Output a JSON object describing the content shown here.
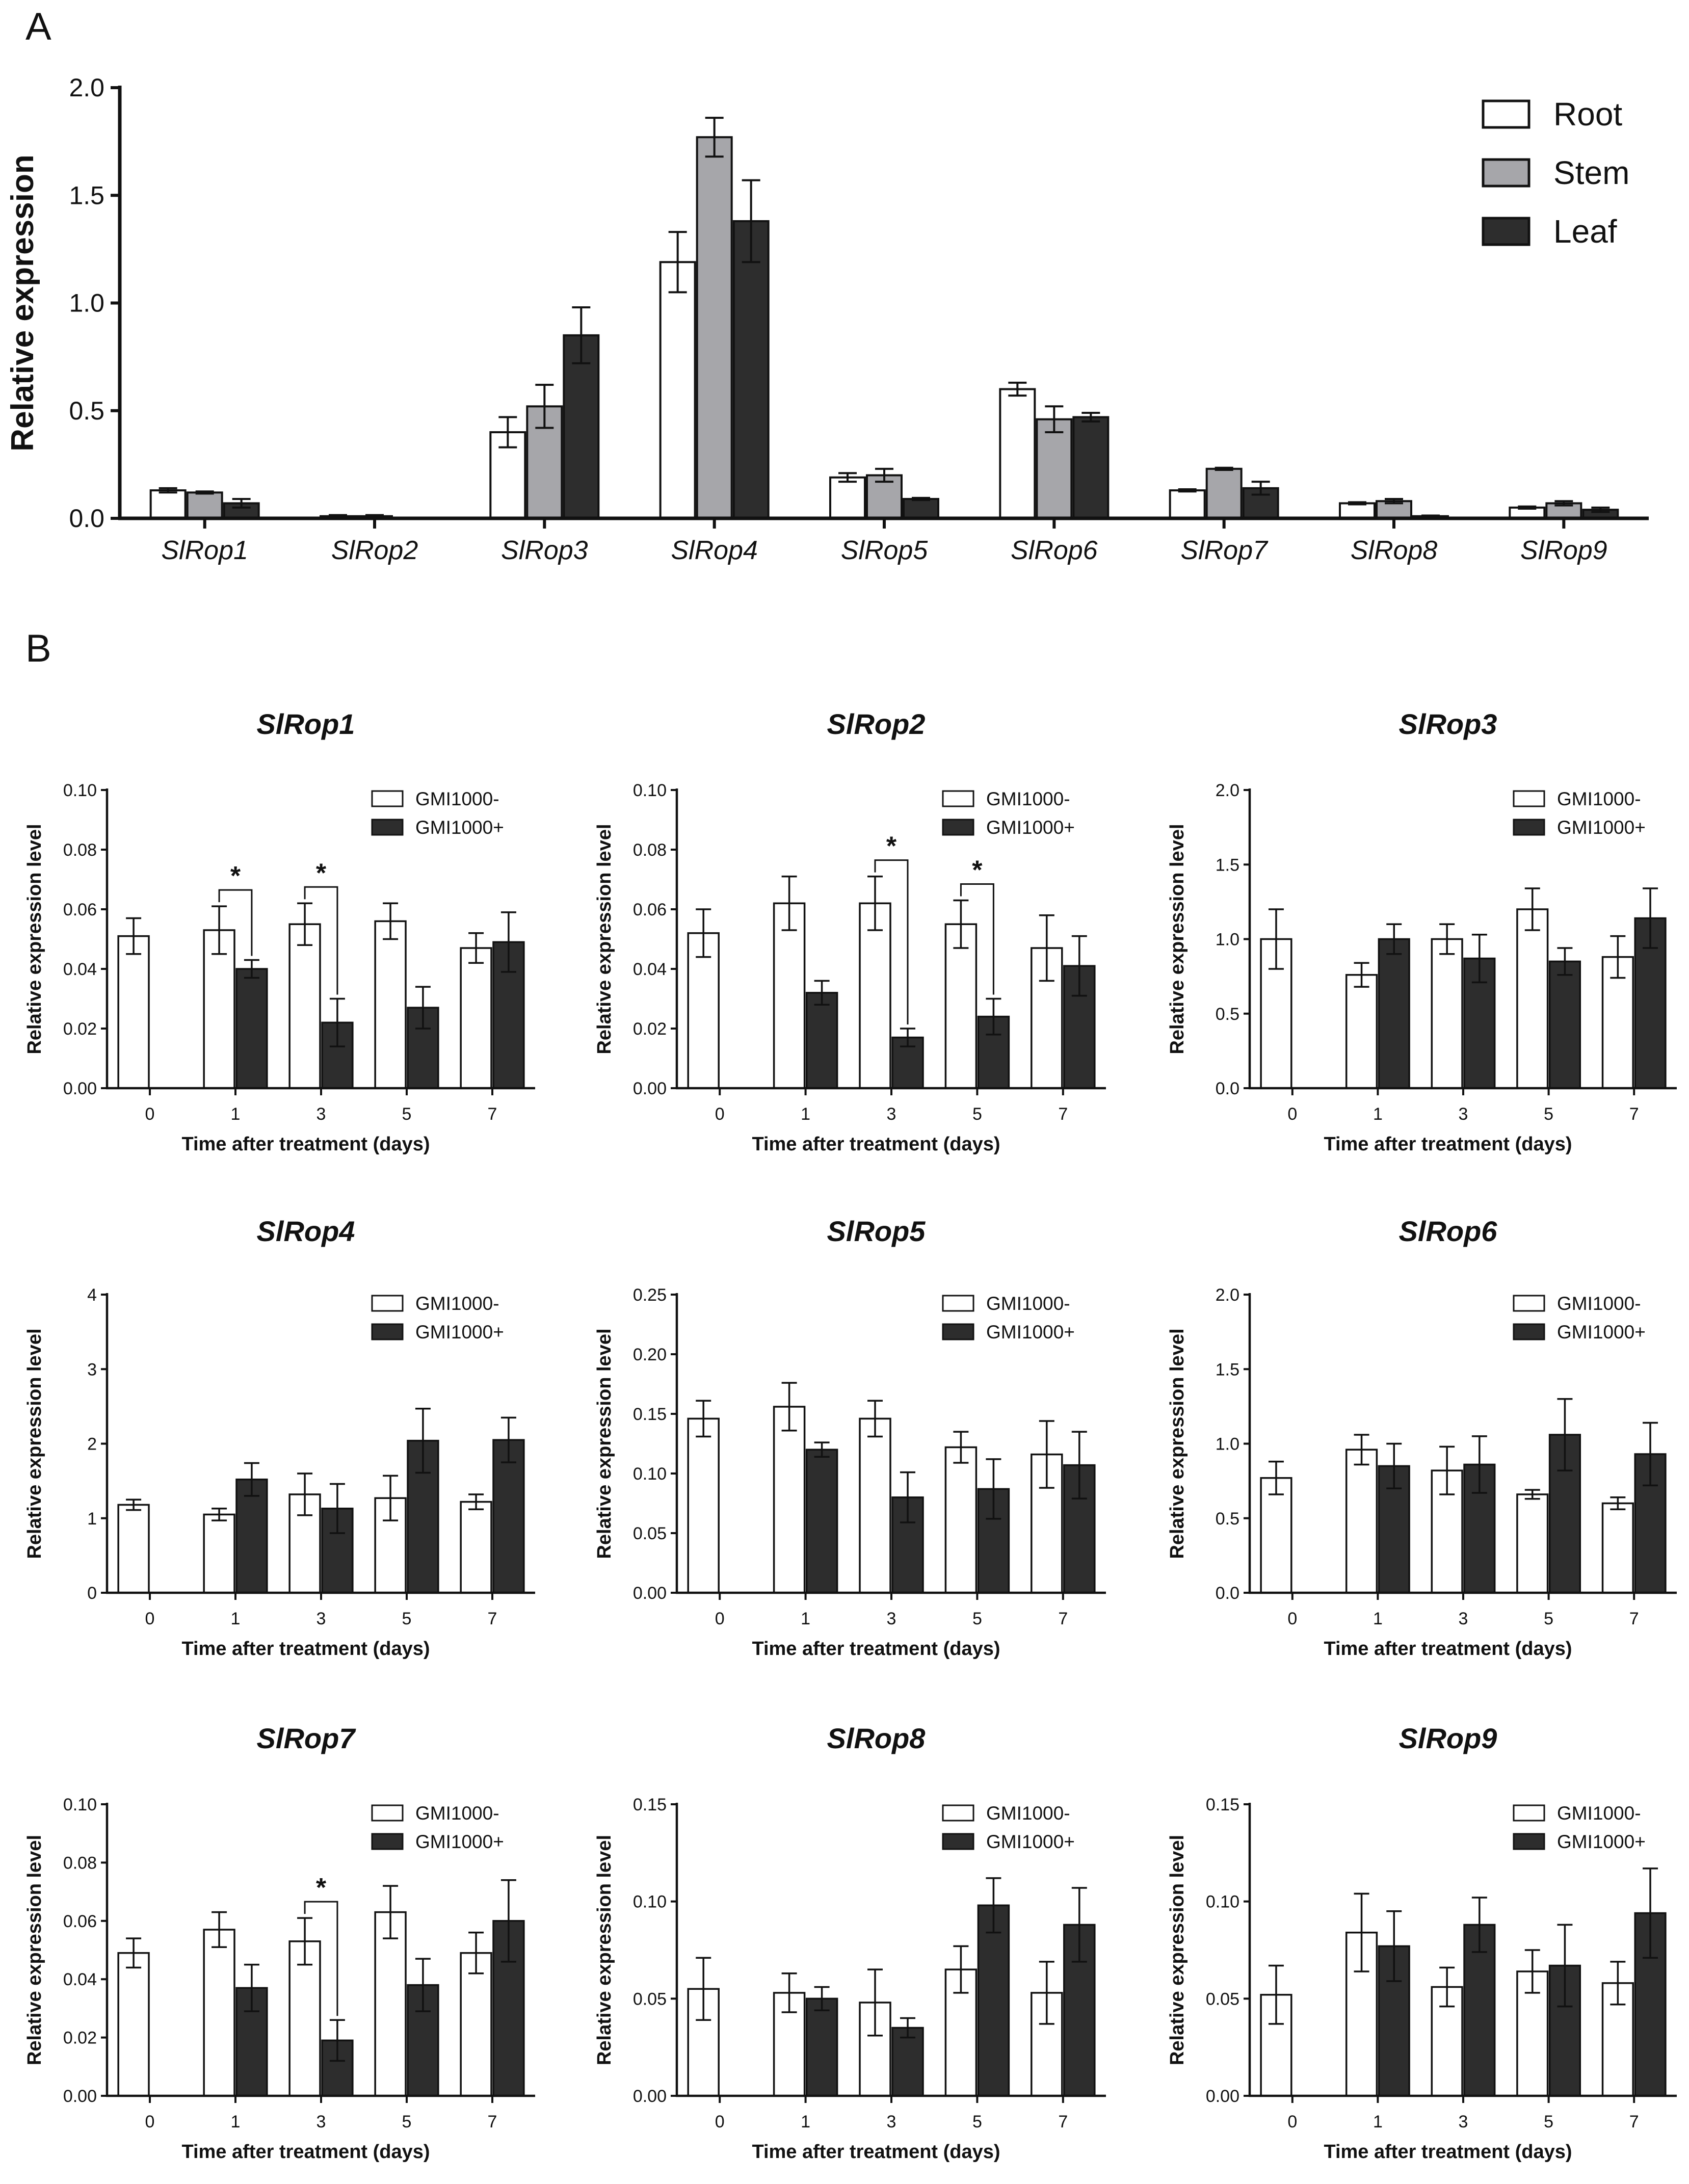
{
  "figure": {
    "panel_a_label": "A",
    "panel_b_label": "B"
  },
  "colors": {
    "root": "#ffffff",
    "stem": "#a6a6aa",
    "leaf": "#2d2d2d",
    "neg": "#ffffff",
    "pos": "#2d2d2d",
    "stroke": "#111111"
  },
  "chart_data": [
    {
      "id": "A",
      "type": "bar",
      "ylabel": "Relative expression",
      "xlabel": "",
      "ylim": [
        0,
        2.0
      ],
      "yticks": [
        "0.0",
        "0.5",
        "1.0",
        "1.5",
        "2.0"
      ],
      "categories": [
        "SlRop1",
        "SlRop2",
        "SlRop3",
        "SlRop4",
        "SlRop5",
        "SlRop6",
        "SlRop7",
        "SlRop8",
        "SlRop9"
      ],
      "legend": [
        "Root",
        "Stem",
        "Leaf"
      ],
      "series": [
        {
          "name": "Root",
          "values": [
            0.13,
            0.01,
            0.4,
            1.19,
            0.19,
            0.6,
            0.13,
            0.07,
            0.05
          ],
          "errors": [
            0.01,
            0.005,
            0.07,
            0.14,
            0.02,
            0.03,
            0.005,
            0.005,
            0.005
          ]
        },
        {
          "name": "Stem",
          "values": [
            0.12,
            0.01,
            0.52,
            1.77,
            0.2,
            0.46,
            0.23,
            0.08,
            0.07
          ],
          "errors": [
            0.005,
            0.005,
            0.1,
            0.09,
            0.03,
            0.06,
            0.005,
            0.01,
            0.01
          ]
        },
        {
          "name": "Leaf",
          "values": [
            0.07,
            0.0,
            0.85,
            1.38,
            0.09,
            0.47,
            0.14,
            0.01,
            0.04
          ],
          "errors": [
            0.02,
            0.0,
            0.13,
            0.19,
            0.005,
            0.02,
            0.03,
            0.003,
            0.01
          ]
        }
      ]
    },
    {
      "id": "B1",
      "type": "bar",
      "title": "SlRop1",
      "ylabel": "Relative expression level",
      "xlabel": "Time after treatment (days)",
      "categories": [
        "0",
        "1",
        "3",
        "5",
        "7"
      ],
      "ylim": [
        0,
        0.1
      ],
      "yticks": [
        "0.00",
        "0.02",
        "0.04",
        "0.06",
        "0.08",
        "0.10"
      ],
      "legend": [
        "GMI1000-",
        "GMI1000+"
      ],
      "series": [
        {
          "name": "GMI1000-",
          "values": [
            0.051,
            0.053,
            0.055,
            0.056,
            0.047
          ],
          "errors": [
            0.006,
            0.008,
            0.007,
            0.006,
            0.005
          ]
        },
        {
          "name": "GMI1000+",
          "values": [
            null,
            0.04,
            0.022,
            0.027,
            0.049
          ],
          "errors": [
            null,
            0.003,
            0.008,
            0.007,
            0.01
          ]
        }
      ],
      "significance": [
        {
          "category": "1",
          "label": "*"
        },
        {
          "category": "3",
          "label": "*"
        }
      ]
    },
    {
      "id": "B2",
      "type": "bar",
      "title": "SlRop2",
      "ylabel": "Relative expression level",
      "xlabel": "Time after treatment (days)",
      "categories": [
        "0",
        "1",
        "3",
        "5",
        "7"
      ],
      "ylim": [
        0,
        0.1
      ],
      "yticks": [
        "0.00",
        "0.02",
        "0.04",
        "0.06",
        "0.08",
        "0.10"
      ],
      "legend": [
        "GMI1000-",
        "GMI1000+"
      ],
      "series": [
        {
          "name": "GMI1000-",
          "values": [
            0.052,
            0.062,
            0.062,
            0.055,
            0.047
          ],
          "errors": [
            0.008,
            0.009,
            0.009,
            0.008,
            0.011
          ]
        },
        {
          "name": "GMI1000+",
          "values": [
            null,
            0.032,
            0.017,
            0.024,
            0.041
          ],
          "errors": [
            null,
            0.004,
            0.003,
            0.006,
            0.01
          ]
        }
      ],
      "significance": [
        {
          "category": "3",
          "label": "*"
        },
        {
          "category": "5",
          "label": "*"
        }
      ]
    },
    {
      "id": "B3",
      "type": "bar",
      "title": "SlRop3",
      "ylabel": "Relative expression level",
      "xlabel": "Time after treatment (days)",
      "categories": [
        "0",
        "1",
        "3",
        "5",
        "7"
      ],
      "ylim": [
        0,
        2.0
      ],
      "yticks": [
        "0.0",
        "0.5",
        "1.0",
        "1.5",
        "2.0"
      ],
      "legend": [
        "GMI1000-",
        "GMI1000+"
      ],
      "series": [
        {
          "name": "GMI1000-",
          "values": [
            1.0,
            0.76,
            1.0,
            1.2,
            0.88
          ],
          "errors": [
            0.2,
            0.08,
            0.1,
            0.14,
            0.14
          ]
        },
        {
          "name": "GMI1000+",
          "values": [
            null,
            1.0,
            0.87,
            0.85,
            1.14
          ],
          "errors": [
            null,
            0.1,
            0.16,
            0.09,
            0.2
          ]
        }
      ],
      "significance": []
    },
    {
      "id": "B4",
      "type": "bar",
      "title": "SlRop4",
      "ylabel": "Relative expression level",
      "xlabel": "Time after treatment (days)",
      "categories": [
        "0",
        "1",
        "3",
        "5",
        "7"
      ],
      "ylim": [
        0,
        4
      ],
      "yticks": [
        "0",
        "1",
        "2",
        "3",
        "4"
      ],
      "legend": [
        "GMI1000-",
        "GMI1000+"
      ],
      "series": [
        {
          "name": "GMI1000-",
          "values": [
            1.18,
            1.05,
            1.32,
            1.27,
            1.22
          ],
          "errors": [
            0.07,
            0.08,
            0.28,
            0.3,
            0.1
          ]
        },
        {
          "name": "GMI1000+",
          "values": [
            null,
            1.52,
            1.13,
            2.04,
            2.05
          ],
          "errors": [
            null,
            0.22,
            0.33,
            0.43,
            0.3
          ]
        }
      ],
      "significance": []
    },
    {
      "id": "B5",
      "type": "bar",
      "title": "SlRop5",
      "ylabel": "Relative expression level",
      "xlabel": "Time after treatment (days)",
      "categories": [
        "0",
        "1",
        "3",
        "5",
        "7"
      ],
      "ylim": [
        0,
        0.25
      ],
      "yticks": [
        "0.00",
        "0.05",
        "0.10",
        "0.15",
        "0.20",
        "0.25"
      ],
      "legend": [
        "GMI1000-",
        "GMI1000+"
      ],
      "series": [
        {
          "name": "GMI1000-",
          "values": [
            0.146,
            0.156,
            0.146,
            0.122,
            0.116
          ],
          "errors": [
            0.015,
            0.02,
            0.015,
            0.013,
            0.028
          ]
        },
        {
          "name": "GMI1000+",
          "values": [
            null,
            0.12,
            0.08,
            0.087,
            0.107
          ],
          "errors": [
            null,
            0.006,
            0.021,
            0.025,
            0.028
          ]
        }
      ],
      "significance": []
    },
    {
      "id": "B6",
      "type": "bar",
      "title": "SlRop6",
      "ylabel": "Relative expression level",
      "xlabel": "Time after treatment (days)",
      "categories": [
        "0",
        "1",
        "3",
        "5",
        "7"
      ],
      "ylim": [
        0,
        2.0
      ],
      "yticks": [
        "0.0",
        "0.5",
        "1.0",
        "1.5",
        "2.0"
      ],
      "legend": [
        "GMI1000-",
        "GMI1000+"
      ],
      "series": [
        {
          "name": "GMI1000-",
          "values": [
            0.77,
            0.96,
            0.82,
            0.66,
            0.6
          ],
          "errors": [
            0.11,
            0.1,
            0.16,
            0.03,
            0.04
          ]
        },
        {
          "name": "GMI1000+",
          "values": [
            null,
            0.85,
            0.86,
            1.06,
            0.93
          ],
          "errors": [
            null,
            0.15,
            0.19,
            0.24,
            0.21
          ]
        }
      ],
      "significance": []
    },
    {
      "id": "B7",
      "type": "bar",
      "title": "SlRop7",
      "ylabel": "Relative expression level",
      "xlabel": "Time after treatment (days)",
      "categories": [
        "0",
        "1",
        "3",
        "5",
        "7"
      ],
      "ylim": [
        0,
        0.1
      ],
      "yticks": [
        "0.00",
        "0.02",
        "0.04",
        "0.06",
        "0.08",
        "0.10"
      ],
      "legend": [
        "GMI1000-",
        "GMI1000+"
      ],
      "series": [
        {
          "name": "GMI1000-",
          "values": [
            0.049,
            0.057,
            0.053,
            0.063,
            0.049
          ],
          "errors": [
            0.005,
            0.006,
            0.008,
            0.009,
            0.007
          ]
        },
        {
          "name": "GMI1000+",
          "values": [
            null,
            0.037,
            0.019,
            0.038,
            0.06
          ],
          "errors": [
            null,
            0.008,
            0.007,
            0.009,
            0.014
          ]
        }
      ],
      "significance": [
        {
          "category": "3",
          "label": "*"
        }
      ]
    },
    {
      "id": "B8",
      "type": "bar",
      "title": "SlRop8",
      "ylabel": "Relative expression level",
      "xlabel": "Time after treatment (days)",
      "categories": [
        "0",
        "1",
        "3",
        "5",
        "7"
      ],
      "ylim": [
        0,
        0.15
      ],
      "yticks": [
        "0.00",
        "0.05",
        "0.10",
        "0.15"
      ],
      "legend": [
        "GMI1000-",
        "GMI1000+"
      ],
      "series": [
        {
          "name": "GMI1000-",
          "values": [
            0.055,
            0.053,
            0.048,
            0.065,
            0.053
          ],
          "errors": [
            0.016,
            0.01,
            0.017,
            0.012,
            0.016
          ]
        },
        {
          "name": "GMI1000+",
          "values": [
            null,
            0.05,
            0.035,
            0.098,
            0.088
          ],
          "errors": [
            null,
            0.006,
            0.005,
            0.014,
            0.019
          ]
        }
      ],
      "significance": []
    },
    {
      "id": "B9",
      "type": "bar",
      "title": "SlRop9",
      "ylabel": "Relative expression level",
      "xlabel": "Time after treatment (days)",
      "categories": [
        "0",
        "1",
        "3",
        "5",
        "7"
      ],
      "ylim": [
        0,
        0.15
      ],
      "yticks": [
        "0.00",
        "0.05",
        "0.10",
        "0.15"
      ],
      "legend": [
        "GMI1000-",
        "GMI1000+"
      ],
      "series": [
        {
          "name": "GMI1000-",
          "values": [
            0.052,
            0.084,
            0.056,
            0.064,
            0.058
          ],
          "errors": [
            0.015,
            0.02,
            0.01,
            0.011,
            0.011
          ]
        },
        {
          "name": "GMI1000+",
          "values": [
            null,
            0.077,
            0.088,
            0.067,
            0.094
          ],
          "errors": [
            null,
            0.018,
            0.014,
            0.021,
            0.023
          ]
        }
      ],
      "significance": []
    }
  ]
}
